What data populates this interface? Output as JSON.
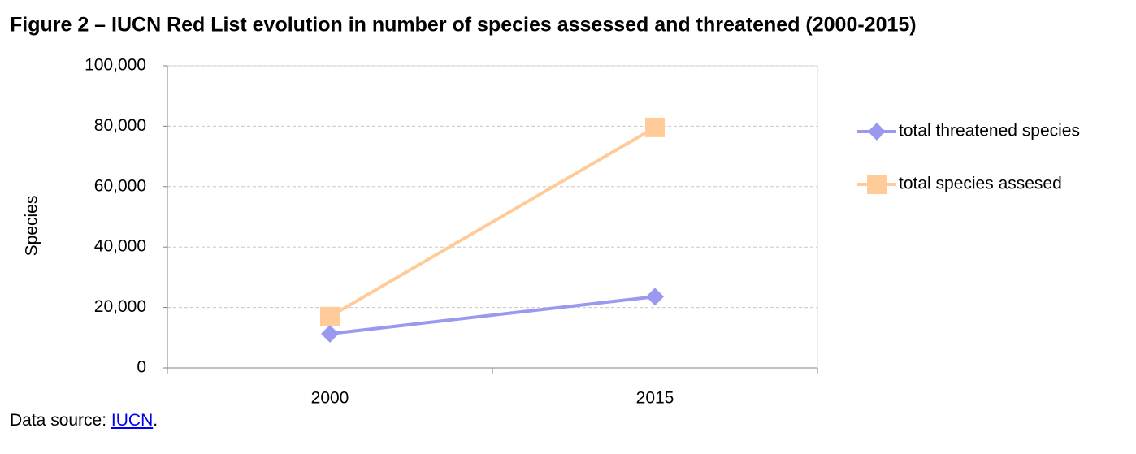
{
  "chart_data": {
    "type": "line",
    "title": "Figure 2 – IUCN Red List evolution in number of species assessed and threatened (2000-2015)",
    "y_label": "Species",
    "categories": [
      "2000",
      "2015"
    ],
    "series": [
      {
        "name": "total threatened species",
        "color": "#9999f0",
        "marker": "diamond",
        "values": [
          11300,
          23600
        ]
      },
      {
        "name": "total species assesed",
        "color": "#ffcc99",
        "marker": "square",
        "values": [
          17000,
          79600
        ]
      }
    ],
    "ylim": [
      0,
      100000
    ],
    "yticks": [
      0,
      {
        "value": 20000,
        "label": "20,000"
      },
      {
        "value": 40000,
        "label": "40,000"
      },
      {
        "value": 60000,
        "label": "60,000"
      },
      {
        "value": 80000,
        "label": "80,000"
      },
      {
        "value": 100000,
        "label": "100,000"
      }
    ],
    "grid": true,
    "legend": "right"
  },
  "source": {
    "prefix": "Data source:",
    "link": "IUCN",
    "suffix": "."
  }
}
